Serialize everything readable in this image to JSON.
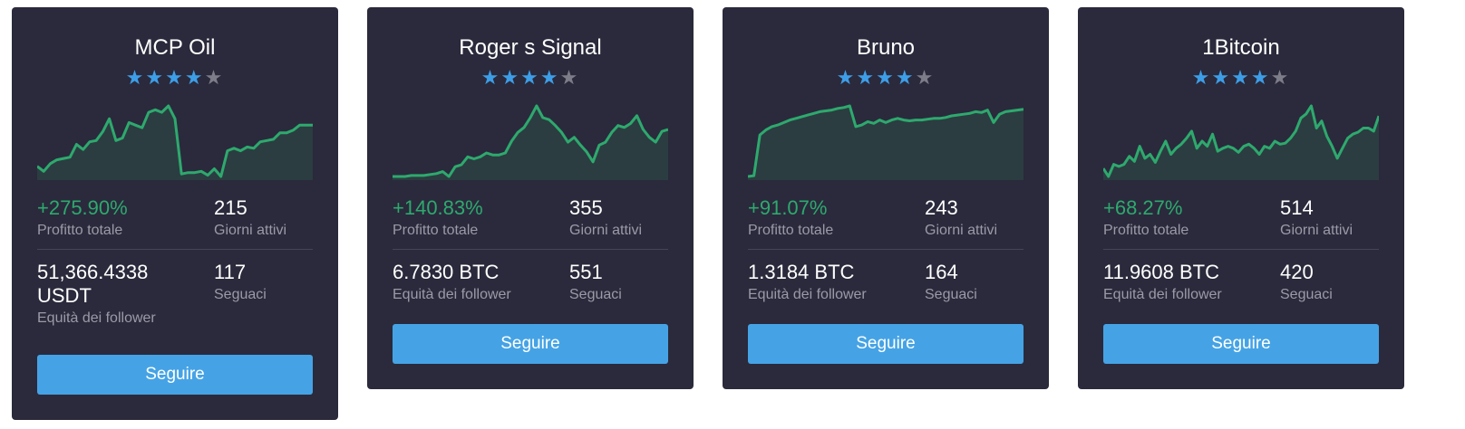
{
  "cards": [
    {
      "name": "MCP Oil",
      "rating": 4,
      "max_rating": 5,
      "total_profit": "+275.90%",
      "total_profit_label": "Profitto totale",
      "active_days": "215",
      "active_days_label": "Giorni attivi",
      "follower_equity": "51,366.4338 USDT",
      "follower_equity_label": "Equità dei follower",
      "followers": "117",
      "followers_label": "Seguaci",
      "follow_label": "Seguire",
      "line_color": "#2ea96e",
      "sparkline": [
        8,
        4,
        10,
        13,
        14,
        15,
        25,
        21,
        27,
        28,
        35,
        45,
        28,
        30,
        42,
        40,
        38,
        50,
        52,
        50,
        55,
        45,
        2,
        3,
        3,
        4,
        1,
        6,
        0,
        20,
        22,
        20,
        23,
        22,
        27,
        28,
        29,
        34,
        34,
        36,
        40,
        40,
        40
      ]
    },
    {
      "name": "Roger s Signal",
      "rating": 4,
      "max_rating": 5,
      "total_profit": "+140.83%",
      "total_profit_label": "Profitto totale",
      "active_days": "355",
      "active_days_label": "Giorni attivi",
      "follower_equity": "6.7830 BTC",
      "follower_equity_label": "Equità dei follower",
      "followers": "551",
      "followers_label": "Seguaci",
      "follow_label": "Seguire",
      "line_color": "#2ea96e",
      "sparkline": [
        0,
        0,
        0,
        1,
        1,
        1,
        2,
        3,
        5,
        0,
        10,
        12,
        20,
        18,
        20,
        24,
        22,
        22,
        24,
        36,
        45,
        50,
        60,
        72,
        60,
        58,
        52,
        45,
        35,
        40,
        32,
        25,
        15,
        32,
        35,
        45,
        52,
        50,
        54,
        62,
        48,
        40,
        35,
        46,
        48
      ]
    },
    {
      "name": "Bruno",
      "rating": 4,
      "max_rating": 5,
      "total_profit": "+91.07%",
      "total_profit_label": "Profitto totale",
      "active_days": "243",
      "active_days_label": "Giorni attivi",
      "follower_equity": "1.3184 BTC",
      "follower_equity_label": "Equità dei follower",
      "followers": "164",
      "followers_label": "Seguaci",
      "follow_label": "Seguire",
      "line_color": "#2ea96e",
      "sparkline": [
        0,
        1,
        50,
        56,
        60,
        62,
        65,
        68,
        70,
        72,
        74,
        76,
        78,
        79,
        80,
        82,
        83,
        85,
        60,
        62,
        66,
        64,
        68,
        65,
        68,
        70,
        68,
        67,
        68,
        68,
        69,
        70,
        70,
        71,
        73,
        74,
        75,
        76,
        78,
        77,
        80,
        65,
        75,
        78,
        79,
        80,
        81
      ]
    },
    {
      "name": "1Bitcoin",
      "rating": 4,
      "max_rating": 5,
      "total_profit": "+68.27%",
      "total_profit_label": "Profitto totale",
      "active_days": "514",
      "active_days_label": "Giorni attivi",
      "follower_equity": "11.9608 BTC",
      "follower_equity_label": "Equità dei follower",
      "followers": "420",
      "followers_label": "Seguaci",
      "follow_label": "Seguire",
      "line_color": "#2ea96e",
      "sparkline": [
        8,
        0,
        12,
        10,
        12,
        20,
        15,
        30,
        18,
        22,
        14,
        25,
        35,
        22,
        28,
        32,
        38,
        45,
        28,
        35,
        30,
        42,
        25,
        28,
        30,
        28,
        24,
        30,
        32,
        28,
        22,
        30,
        28,
        35,
        32,
        33,
        38,
        45,
        58,
        62,
        70,
        48,
        55,
        40,
        30,
        18,
        28,
        38,
        42,
        44,
        48,
        48,
        45,
        60
      ]
    }
  ]
}
